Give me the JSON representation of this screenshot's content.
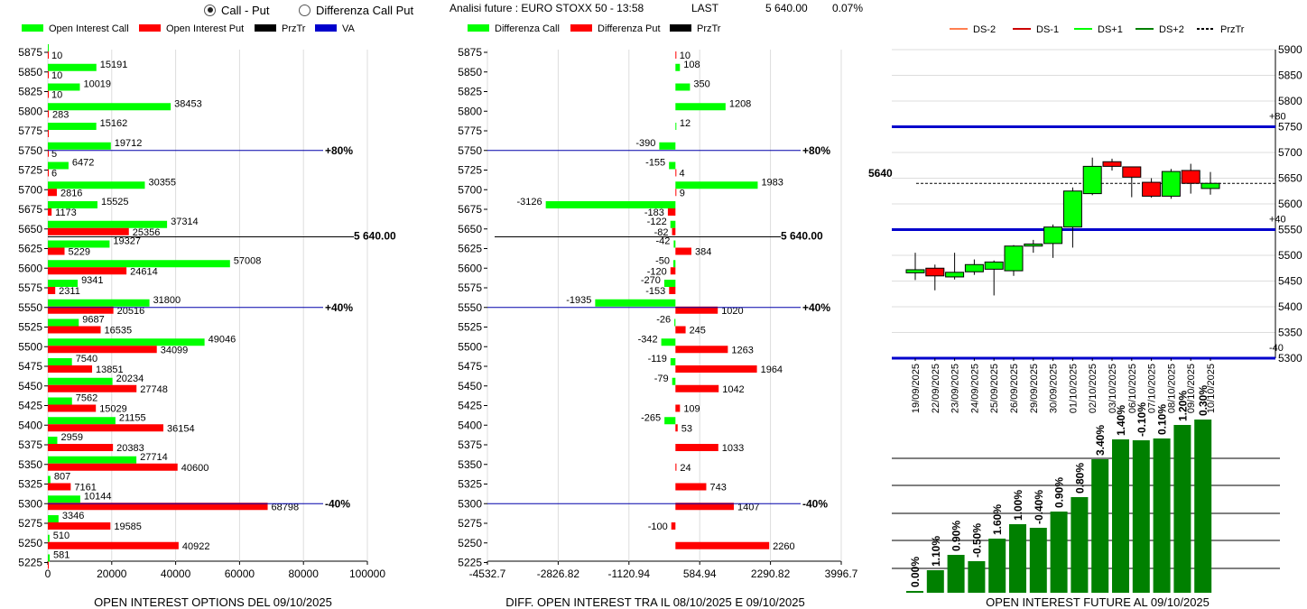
{
  "controls": {
    "call_put_label": "Call - Put",
    "diff_label": "Differenza Call Put",
    "title": "Analisi future : EURO STOXX 50 - 13:58",
    "last_label": "LAST",
    "last_value": "5 640.00",
    "last_change": "0.07%"
  },
  "colors": {
    "green": "#00ff00",
    "red": "#ff0000",
    "dark_green": "#008000",
    "blue": "#0000cc"
  },
  "chart_data": [
    {
      "id": "oi",
      "type": "bar",
      "orientation": "horizontal",
      "title": "OPEN INTEREST OPTIONS DEL 09/10/2025",
      "legend": [
        "Open Interest Call",
        "Open Interest Put",
        "PrzTr",
        "VA"
      ],
      "categories": [
        5875,
        5850,
        5825,
        5800,
        5775,
        5750,
        5725,
        5700,
        5675,
        5650,
        5625,
        5600,
        5575,
        5550,
        5525,
        5500,
        5475,
        5450,
        5425,
        5400,
        5375,
        5350,
        5325,
        5300,
        5275,
        5250,
        5225
      ],
      "series": [
        {
          "name": "Open Interest Call",
          "values": [
            0,
            15191,
            10019,
            38453,
            15162,
            19712,
            6472,
            30355,
            15525,
            37314,
            19327,
            57008,
            9341,
            31800,
            9687,
            49046,
            7540,
            20234,
            7562,
            21155,
            2959,
            27714,
            807,
            10144,
            3346,
            510,
            581
          ]
        },
        {
          "name": "Open Interest Put",
          "values": [
            10,
            10,
            10,
            283,
            0,
            5,
            6,
            2816,
            1173,
            25356,
            5229,
            24614,
            2311,
            20516,
            16535,
            34099,
            13851,
            27748,
            15029,
            36154,
            20383,
            40600,
            7161,
            68798,
            19585,
            40922,
            0
          ]
        }
      ],
      "xticks": [
        "0",
        "20000",
        "40000",
        "60000",
        "80000",
        "100000"
      ],
      "xlim": [
        0,
        100000
      ],
      "price_line": {
        "level": 5640,
        "label": "5 640.00"
      },
      "va_lines": [
        {
          "level": 5750,
          "label": "+80%"
        },
        {
          "level": 5550,
          "label": "+40%"
        },
        {
          "level": 5300,
          "label": "-40%"
        }
      ]
    },
    {
      "id": "diff",
      "type": "bar",
      "orientation": "horizontal",
      "title": "DIFF. OPEN INTEREST TRA IL 08/10/2025 E 09/10/2025",
      "legend": [
        "Differenza Call",
        "Differenza Put",
        "PrzTr"
      ],
      "categories": [
        5875,
        5850,
        5825,
        5800,
        5775,
        5750,
        5725,
        5700,
        5675,
        5650,
        5625,
        5600,
        5575,
        5550,
        5525,
        5500,
        5475,
        5450,
        5425,
        5400,
        5375,
        5350,
        5325,
        5300,
        5275,
        5250,
        5225
      ],
      "series": [
        {
          "name": "Differenza Call",
          "values": [
            null,
            108,
            350,
            1208,
            12,
            -390,
            -155,
            1983,
            -3126,
            -122,
            -42,
            -50,
            -270,
            -1935,
            -26,
            -342,
            -119,
            -79,
            null,
            -265,
            null,
            null,
            null,
            null,
            null,
            null,
            null
          ]
        },
        {
          "name": "Differenza Put",
          "values": [
            10,
            null,
            null,
            null,
            null,
            null,
            4,
            9,
            -183,
            -82,
            384,
            -120,
            -153,
            1020,
            245,
            1263,
            1964,
            1042,
            109,
            53,
            1033,
            24,
            743,
            1407,
            -100,
            2260,
            null
          ]
        }
      ],
      "xticks": [
        "-4532.7",
        "-2826.82",
        "-1120.94",
        "584.94",
        "2290.82",
        "3996.7"
      ],
      "xlim": [
        -4532.7,
        3996.7
      ],
      "price_line": {
        "level": 5640,
        "label": "5 640.00"
      },
      "va_lines": [
        {
          "level": 5750,
          "label": "+80%"
        },
        {
          "level": 5550,
          "label": "+40%"
        },
        {
          "level": 5300,
          "label": "-40%"
        }
      ]
    },
    {
      "id": "candles",
      "type": "candlestick",
      "legend": [
        "DS-2",
        "DS-1",
        "DS+1",
        "DS+2",
        "PrzTr"
      ],
      "dates": [
        "19/09/2025",
        "22/09/2025",
        "23/09/2025",
        "24/09/2025",
        "25/09/2025",
        "26/09/2025",
        "29/09/2025",
        "30/09/2025",
        "01/10/2025",
        "02/10/2025",
        "03/10/2025",
        "06/10/2025",
        "07/10/2025",
        "08/10/2025",
        "09/10/2025",
        "10/10/2025"
      ],
      "ohlc": [
        [
          5466,
          5505,
          5452,
          5472
        ],
        [
          5475,
          5482,
          5432,
          5460
        ],
        [
          5458,
          5505,
          5453,
          5467
        ],
        [
          5468,
          5492,
          5462,
          5482
        ],
        [
          5473,
          5490,
          5422,
          5487
        ],
        [
          5470,
          5520,
          5460,
          5518
        ],
        [
          5518,
          5530,
          5505,
          5522
        ],
        [
          5523,
          5560,
          5495,
          5555
        ],
        [
          5555,
          5632,
          5515,
          5625
        ],
        [
          5620,
          5690,
          5617,
          5673
        ],
        [
          5682,
          5688,
          5665,
          5673
        ],
        [
          5672,
          5670,
          5613,
          5652
        ],
        [
          5642,
          5650,
          5612,
          5615
        ],
        [
          5615,
          5668,
          5610,
          5663
        ],
        [
          5665,
          5678,
          5620,
          5640
        ],
        [
          5630,
          5662,
          5618,
          5640
        ]
      ],
      "ylim": [
        5300,
        5900
      ],
      "yticks": [
        "5900",
        "5850",
        "5800",
        "5750",
        "5700",
        "5650",
        "5600",
        "5550",
        "5500",
        "5450",
        "5400",
        "5350",
        "5300"
      ],
      "bands": [
        {
          "level": 5750,
          "label": "+80"
        },
        {
          "level": 5550,
          "label": "+40"
        },
        {
          "level": 5300,
          "label": "-40"
        }
      ],
      "price_level": 5640,
      "price_label": "5640"
    },
    {
      "id": "future_oi",
      "type": "bar",
      "title": "OPEN INTEREST FUTURE AL 09/10/2025",
      "values": [
        2,
        25,
        42,
        35,
        60,
        76,
        72,
        90,
        106,
        148,
        170,
        169,
        171,
        186,
        192
      ],
      "labels": [
        "0.00%",
        "1.10%",
        "0.90%",
        "-0.50%",
        "1.60%",
        "1.00%",
        "-0.40%",
        "0.90%",
        "0.80%",
        "3.40%",
        "1.40%",
        "-0.10%",
        "0.10%",
        "1.20%",
        "0.30%"
      ]
    }
  ]
}
